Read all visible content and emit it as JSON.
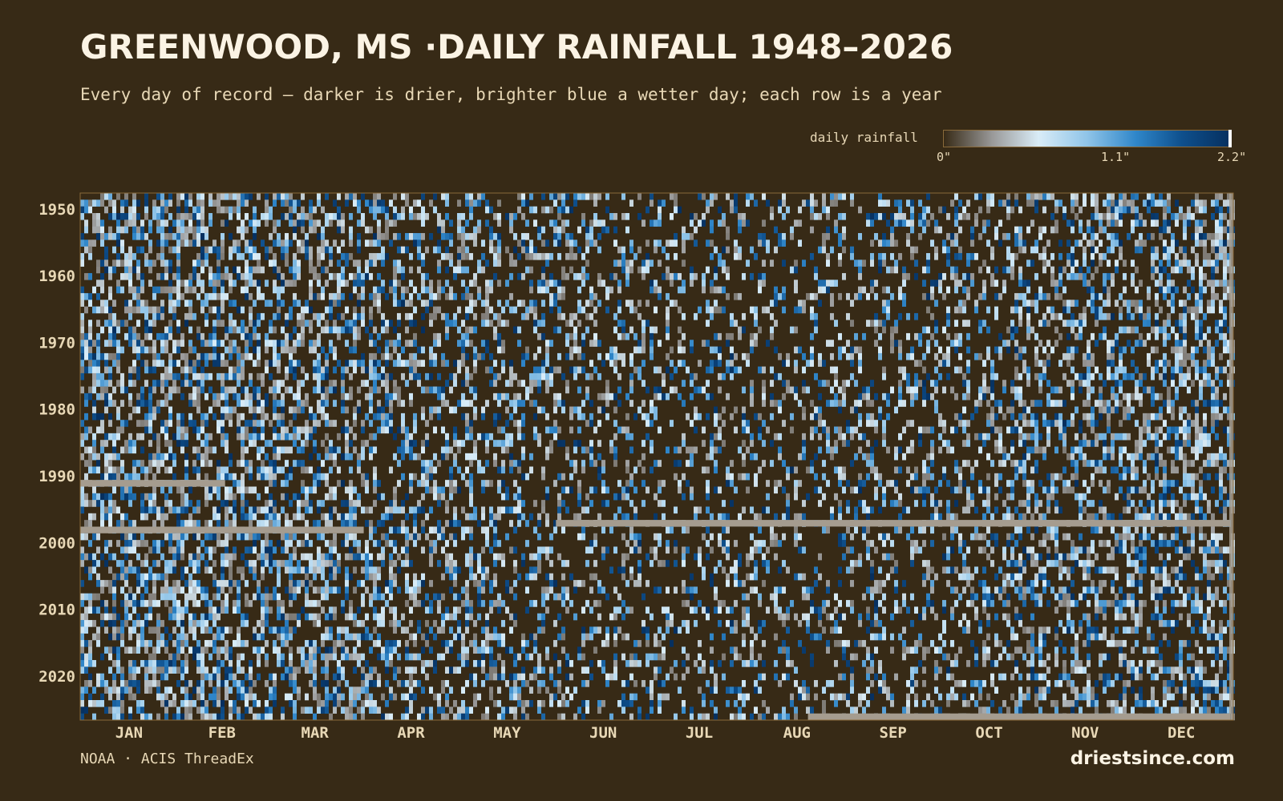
{
  "header": {
    "title": "GREENWOOD, MS ·DAILY RAINFALL 1948–2026",
    "subtitle": "Every day of record — darker is drier, brighter blue a wetter day; each row is a year"
  },
  "legend": {
    "label": "daily rainfall",
    "ticks": [
      "0\"",
      "1.1\"",
      "2.2\""
    ],
    "min": 0,
    "max": 2.2,
    "colors": [
      "#372a16",
      "#9a9a9a",
      "#d9ecf7",
      "#8fc4e8",
      "#2f86c9",
      "#0e4f8c",
      "#062f5e"
    ]
  },
  "chart_data": {
    "type": "heatmap",
    "x_axis": "day of year",
    "y_axis": "year",
    "year_range": [
      1948,
      2026
    ],
    "y_ticks": [
      "1950",
      "1960",
      "1970",
      "1980",
      "1990",
      "2000",
      "2010",
      "2020"
    ],
    "x_ticks": [
      "JAN",
      "FEB",
      "MAR",
      "APR",
      "MAY",
      "JUN",
      "JUL",
      "AUG",
      "SEP",
      "OCT",
      "NOV",
      "DEC"
    ],
    "value_units": "inches",
    "missing_color": "#a59c8f",
    "missing_spans": [
      {
        "year": 1991,
        "from": "Jan 1",
        "to": "Feb 15"
      },
      {
        "year": 1998,
        "from": "Jan 1",
        "to": "Mar 31"
      },
      {
        "year": 1997,
        "from": "Jun 1",
        "to": "Dec 31"
      },
      {
        "year": 2026,
        "from": "Aug 20",
        "to": "Dec 31"
      }
    ],
    "note": "Daily values are drawn as a dense field of cells; individual daily totals are not printed."
  },
  "footer": {
    "source": "NOAA · ACIS ThreadEx",
    "brand": "driestsince.com"
  },
  "colors": {
    "background": "#372a16",
    "text": "#fbf3e4",
    "muted_text": "#e8d8b6",
    "axis_border": "#8a6a3a"
  }
}
